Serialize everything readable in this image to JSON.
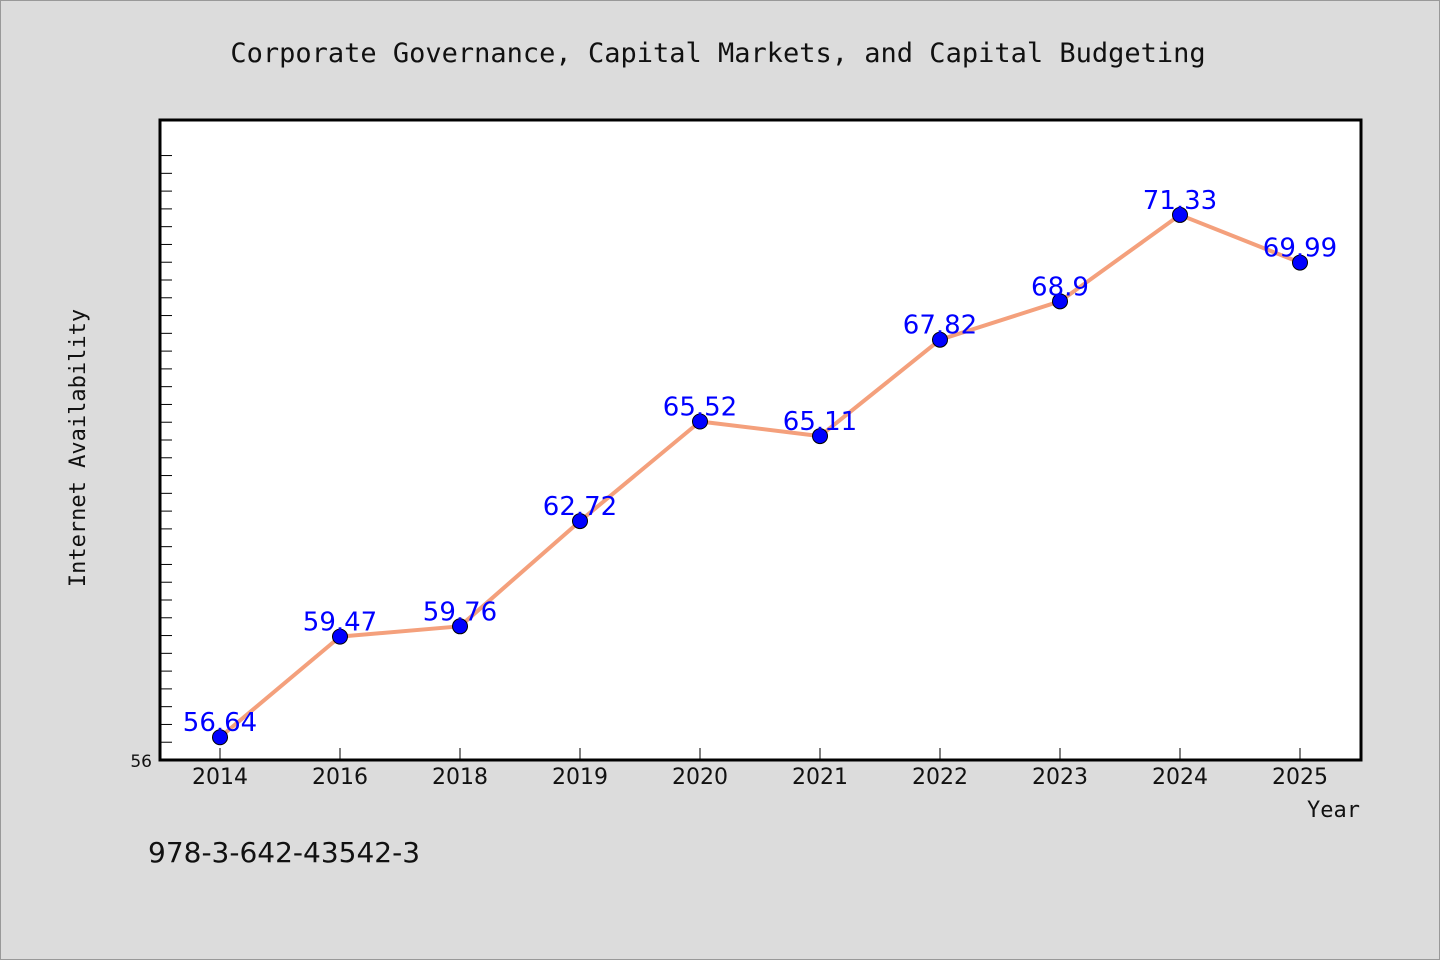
{
  "chart_data": {
    "type": "line",
    "title": "Corporate Governance, Capital Markets, and Capital Budgeting",
    "xlabel": "Year",
    "ylabel": "Internet Availability",
    "categories": [
      "2014",
      "2016",
      "2018",
      "2019",
      "2020",
      "2021",
      "2022",
      "2023",
      "2024",
      "2025"
    ],
    "series": [
      {
        "values": [
          56.64,
          59.47,
          59.76,
          62.72,
          65.52,
          65.11,
          67.82,
          68.9,
          71.33,
          69.99
        ],
        "labels": [
          "56.64",
          "59.47",
          "59.76",
          "62.72",
          "65.52",
          "65.11",
          "67.82",
          "68.9",
          "71.33",
          "69.99"
        ]
      }
    ],
    "ylim": [
      56,
      74
    ],
    "y_tick_labels": [
      "56"
    ],
    "grid": false,
    "legend": "none",
    "colors": {
      "line": "#f4a07c",
      "marker": "#0000ff",
      "data_label": "#0000ff",
      "plot_background": "#ffffff",
      "figure_background": "#dcdcdc"
    }
  },
  "footer": {
    "isbn": "978-3-642-43542-3"
  }
}
